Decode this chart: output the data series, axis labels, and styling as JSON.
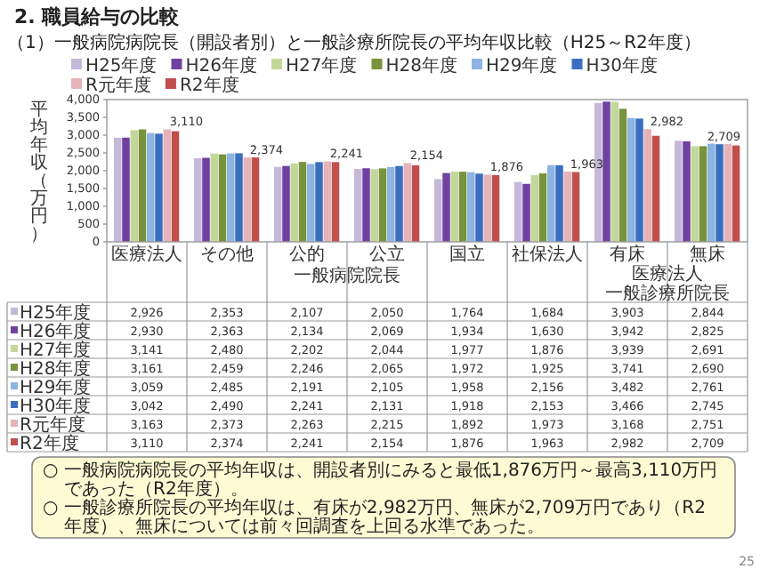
{
  "chart_data": {
    "type": "bar",
    "title": "2. 職員給与の比較",
    "subtitle": "（1）一般病院病院長（開設者別）と一般診療所院長の平均年収比較（H25～R2年度）",
    "ylabel": "平均年収（万円）",
    "categories": [
      "医療法人",
      "その他",
      "公的",
      "公立",
      "国立",
      "社保法人",
      "有床",
      "無床"
    ],
    "series": [
      {
        "name": "H25年度",
        "color": "#c5b9da",
        "values": [
          2926,
          2353,
          2107,
          2050,
          1764,
          1684,
          3903,
          2844
        ],
        "value_labels": [
          "2,926",
          "2,353",
          "2,107",
          "2,050",
          "1,764",
          "1,684",
          "3,903",
          "2,844"
        ]
      },
      {
        "name": "H26年度",
        "color": "#7040a0",
        "values": [
          2930,
          2363,
          2134,
          2069,
          1934,
          1630,
          3942,
          2825
        ],
        "value_labels": [
          "2,930",
          "2,363",
          "2,134",
          "2,069",
          "1,934",
          "1,630",
          "3,942",
          "2,825"
        ]
      },
      {
        "name": "H27年度",
        "color": "#c4d79b",
        "values": [
          3141,
          2480,
          2202,
          2044,
          1977,
          1876,
          3939,
          2691
        ],
        "value_labels": [
          "3,141",
          "2,480",
          "2,202",
          "2,044",
          "1,977",
          "1,876",
          "3,939",
          "2,691"
        ]
      },
      {
        "name": "H28年度",
        "color": "#77933c",
        "values": [
          3161,
          2459,
          2246,
          2065,
          1972,
          1925,
          3741,
          2690
        ],
        "value_labels": [
          "3,161",
          "2,459",
          "2,246",
          "2,065",
          "1,972",
          "1,925",
          "3,741",
          "2,690"
        ]
      },
      {
        "name": "H29年度",
        "color": "#8db4e2",
        "values": [
          3059,
          2485,
          2191,
          2105,
          1958,
          2156,
          3482,
          2761
        ],
        "value_labels": [
          "3,059",
          "2,485",
          "2,191",
          "2,105",
          "1,958",
          "2,156",
          "3,482",
          "2,761"
        ]
      },
      {
        "name": "H30年度",
        "color": "#3a6fbf",
        "values": [
          3042,
          2490,
          2241,
          2131,
          1918,
          2153,
          3466,
          2745
        ],
        "value_labels": [
          "3,042",
          "2,490",
          "2,241",
          "2,131",
          "1,918",
          "2,153",
          "3,466",
          "2,745"
        ]
      },
      {
        "name": "R元年度",
        "color": "#e6b3b8",
        "values": [
          3163,
          2373,
          2263,
          2215,
          1892,
          1973,
          3168,
          2751
        ],
        "value_labels": [
          "3,163",
          "2,373",
          "2,263",
          "2,215",
          "1,892",
          "1,973",
          "3,168",
          "2,751"
        ]
      },
      {
        "name": "R2年度",
        "color": "#c0504d",
        "values": [
          3110,
          2374,
          2241,
          2154,
          1876,
          1963,
          2982,
          2709
        ],
        "value_labels": [
          "3,110",
          "2,374",
          "2,241",
          "2,154",
          "1,876",
          "1,963",
          "2,982",
          "2,709"
        ]
      }
    ],
    "ylim": [
      0,
      4000
    ],
    "yticks": [
      {
        "value": 0,
        "label": "0"
      },
      {
        "value": 500,
        "label": "500"
      },
      {
        "value": 1000,
        "label": "1,000"
      },
      {
        "value": 1500,
        "label": "1,500"
      },
      {
        "value": 2000,
        "label": "2,000"
      },
      {
        "value": 2500,
        "label": "2,500"
      },
      {
        "value": 3000,
        "label": "3,000"
      },
      {
        "value": 3500,
        "label": "3,500"
      },
      {
        "value": 4000,
        "label": "4,000"
      }
    ],
    "legend": "top",
    "grid": false,
    "annotations": [
      "一般病院院長",
      "医療法人",
      "一般診療所院長",
      "○ 一般病院病院長の平均年収は、開設者別にみると最低1,876万円～最高3,110万円であった（R2年度）。",
      "○ 一般診療所院長の平均年収は、有床が2,982万円、無床が2,709万円であり（R2年度）、無床については前々回調査を上回る水準であった。",
      "25"
    ]
  }
}
